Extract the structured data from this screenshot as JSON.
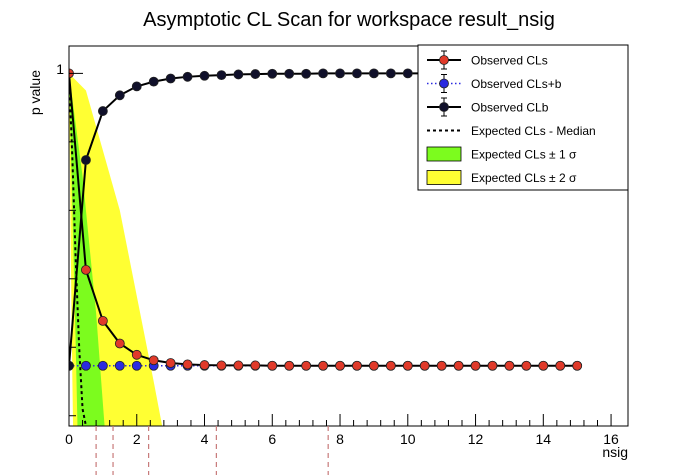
{
  "chart_data": {
    "type": "line",
    "title": "Asymptotic CL Scan for workspace result_nsig",
    "xlabel": "nsig",
    "ylabel": "p value",
    "xlim": [
      0,
      16.5
    ],
    "ylim": [
      -0.03,
      1.08
    ],
    "x_ticks": [
      "0",
      "2",
      "4",
      "6",
      "8",
      "10",
      "12",
      "14",
      "16"
    ],
    "x_tick_values": [
      0,
      2,
      4,
      6,
      8,
      10,
      12,
      14,
      16
    ],
    "y_tick_label": "1",
    "x": [
      0,
      0.5,
      1,
      1.5,
      2,
      2.5,
      3,
      3.5,
      4,
      4.5,
      5,
      5.5,
      6,
      6.5,
      7,
      7.5,
      8,
      8.5,
      9,
      9.5,
      10,
      10.5,
      11,
      11.5,
      12,
      12.5,
      13,
      13.5,
      14,
      14.5,
      15
    ],
    "series": [
      {
        "name": "Observed CLs",
        "color": "#e03a2a",
        "values": [
          1,
          0.426,
          0.277,
          0.211,
          0.178,
          0.162,
          0.154,
          0.15,
          0.148,
          0.147,
          0.147,
          0.147,
          0.146,
          0.146,
          0.146,
          0.146,
          0.146,
          0.146,
          0.146,
          0.146,
          0.146,
          0.146,
          0.146,
          0.146,
          0.146,
          0.146,
          0.146,
          0.146,
          0.146,
          0.146,
          0.146
        ]
      },
      {
        "name": "Observed CLs+b",
        "color": "#2a2ae0",
        "values": [
          0.146,
          0.146,
          0.146,
          0.146,
          0.146,
          0.146,
          0.146,
          0.146,
          0.146,
          0.146,
          0.146,
          0.146,
          0.146,
          0.146,
          0.146,
          0.146,
          0.146,
          0.146,
          0.146,
          0.146,
          0.146,
          0.146,
          0.146,
          0.146,
          0.146,
          0.146,
          0.146,
          0.146,
          0.146,
          0.146,
          0.146
        ]
      },
      {
        "name": "Observed CLb",
        "color": "#10102a",
        "values": [
          0.146,
          0.747,
          0.89,
          0.936,
          0.962,
          0.976,
          0.985,
          0.99,
          0.993,
          0.995,
          0.997,
          0.998,
          0.999,
          0.999,
          0.999,
          1,
          1,
          1,
          1,
          1,
          1,
          1,
          1,
          1,
          1,
          1,
          1,
          1,
          1,
          1,
          1
        ]
      }
    ],
    "expected_median": {
      "name": "Expected CLs - Median",
      "x": [
        0,
        0.1,
        0.2,
        0.3,
        0.4,
        0.5
      ],
      "values": [
        1,
        0.75,
        0.45,
        0.2,
        0.02,
        -0.03
      ]
    },
    "band_1sigma": {
      "name": "Expected CLs ± 1 σ",
      "color": "#7cfc1e",
      "upper": [
        [
          0,
          1
        ],
        [
          0.4,
          0.7
        ],
        [
          0.8,
          0.3
        ],
        [
          1.05,
          -0.03
        ]
      ],
      "lower": [
        [
          0,
          1
        ],
        [
          0.1,
          0.6
        ],
        [
          0.2,
          0.2
        ],
        [
          0.25,
          -0.03
        ]
      ]
    },
    "band_2sigma": {
      "name": "Expected CLs ± 2 σ",
      "color": "#ffff33",
      "upper": [
        [
          0,
          1
        ],
        [
          0.5,
          0.95
        ],
        [
          1.5,
          0.6
        ],
        [
          2.5,
          0.1
        ],
        [
          2.75,
          -0.03
        ]
      ],
      "lower": [
        [
          0,
          1
        ],
        [
          0.05,
          0.5
        ],
        [
          0.1,
          0.1
        ],
        [
          0.12,
          -0.03
        ]
      ]
    },
    "cl_lines_x": [
      0.8,
      1.3,
      2.35,
      4.35,
      7.65
    ],
    "legend": {
      "position": "top-right",
      "entries": [
        "Observed CLs",
        "Observed CLs+b",
        "Observed CLb",
        "Expected CLs - Median",
        "Expected CLs ± 1 σ",
        "Expected CLs ± 2 σ"
      ]
    }
  }
}
